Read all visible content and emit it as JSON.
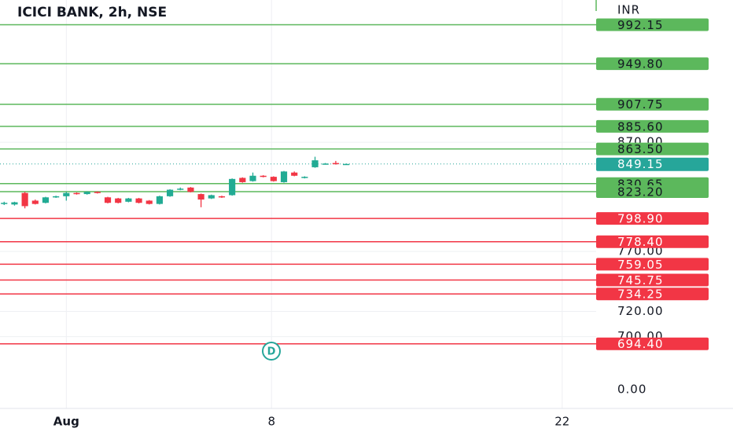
{
  "chart_data": {
    "type": "candlestick",
    "title": "ICICI BANK, 2h, NSE",
    "currency": "INR",
    "bottom_label": "0.00",
    "annotation": "D",
    "log_scale": true,
    "up_color": "#22ab94",
    "down_color": "#f23645",
    "x": [
      0,
      1,
      2,
      3,
      4,
      5,
      6,
      7,
      8,
      9,
      10,
      11,
      12,
      13,
      14,
      15,
      16,
      17,
      18,
      19,
      20,
      21,
      22,
      23,
      24,
      25,
      26,
      27,
      28,
      29,
      30,
      31,
      32,
      33
    ],
    "open": [
      812,
      811.5,
      822,
      815,
      813,
      818,
      819,
      822,
      821,
      823,
      818,
      817,
      814,
      817,
      815,
      812,
      819,
      825,
      827,
      821,
      817,
      819,
      820,
      836,
      833,
      838,
      837,
      832,
      841,
      836,
      846,
      849,
      850,
      849
    ],
    "high": [
      814,
      814,
      823,
      816,
      818.5,
      819.5,
      823,
      822.5,
      823.5,
      823.5,
      818.5,
      817.5,
      817.5,
      817.5,
      815.5,
      819.5,
      825.5,
      827,
      827.5,
      821.5,
      820.5,
      819.5,
      835.5,
      836.5,
      841,
      838.5,
      837.5,
      842.5,
      842,
      837.5,
      856,
      850,
      852,
      849.5
    ],
    "low": [
      811,
      810.5,
      808,
      811.5,
      812.5,
      817.5,
      815,
      820.5,
      820.5,
      821.5,
      812.5,
      812.5,
      813.5,
      812.5,
      811.5,
      811.5,
      818.5,
      824.5,
      822.5,
      809,
      816.5,
      817.5,
      819.5,
      831.5,
      832.5,
      836.5,
      832.5,
      831.5,
      837.5,
      835.5,
      845.5,
      848.5,
      848.5,
      848.5
    ],
    "close": [
      813,
      813.5,
      810,
      812,
      818,
      819,
      822,
      821,
      823,
      822,
      813,
      813,
      817,
      813,
      812,
      819,
      825,
      826,
      823,
      816,
      820,
      818,
      835,
      832,
      838,
      837,
      833,
      842,
      838,
      837,
      852.6,
      849.5,
      849,
      849.15
    ],
    "last": 849.15,
    "last_color": "#26a69a",
    "levels": [
      {
        "color": "#5cb85c",
        "values": [
          992.15,
          949.8,
          907.75,
          885.6,
          863.5,
          830.65,
          823.2
        ],
        "value_labels": [
          "992.15",
          "949.80",
          "907.75",
          "885.60",
          "863.50",
          "830.65",
          "823.20"
        ]
      },
      {
        "color": "#f23645",
        "values": [
          798.9,
          778.4,
          759.05,
          745.75,
          734.25,
          694.4
        ],
        "value_labels": [
          "798.90",
          "778.40",
          "759.05",
          "745.75",
          "734.25",
          "694.40"
        ]
      }
    ],
    "xlim": [
      -0.4,
      56.9
    ],
    "xticks": [
      {
        "value": 6,
        "label": "Aug"
      },
      {
        "value": 25.8,
        "label": "8"
      },
      {
        "value": 53.85,
        "label": "22"
      }
    ],
    "ylim": [
      646,
      1020
    ],
    "yticks": [
      {
        "value": 870,
        "label": "870.00"
      },
      {
        "value": 770,
        "label": "770.00"
      },
      {
        "value": 720,
        "label": "720.00"
      },
      {
        "value": 700,
        "label": "700.00"
      }
    ],
    "grid": true
  }
}
